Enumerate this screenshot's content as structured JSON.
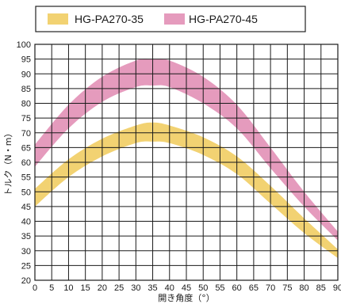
{
  "chart_data": {
    "type": "area",
    "xlabel": "開き角度（°）",
    "ylabel": "トルク（N・m）",
    "xlim": [
      0,
      90
    ],
    "ylim": [
      20,
      100
    ],
    "xticks": [
      0,
      5,
      10,
      15,
      20,
      25,
      30,
      35,
      40,
      45,
      50,
      55,
      60,
      65,
      70,
      75,
      80,
      85,
      90
    ],
    "yticks": [
      20,
      25,
      30,
      35,
      40,
      45,
      50,
      55,
      60,
      65,
      70,
      75,
      80,
      85,
      90,
      95,
      100
    ],
    "grid": true,
    "legend_position": "top",
    "x": [
      0,
      10,
      20,
      30,
      35,
      40,
      50,
      60,
      70,
      80,
      90
    ],
    "series": [
      {
        "name": "HG-PA270-35",
        "color": "#f2d272",
        "lower": [
          45,
          55,
          62,
          66.5,
          67,
          66.5,
          62.5,
          56,
          46,
          36,
          27.5
        ],
        "upper": [
          51,
          61,
          68,
          72.5,
          73.5,
          72.5,
          68.5,
          62,
          52,
          41,
          30.5
        ]
      },
      {
        "name": "HG-PA270-45",
        "color": "#e59bbd",
        "lower": [
          58.5,
          71.5,
          80.5,
          85.5,
          86,
          85.5,
          80,
          71.5,
          58,
          45,
          33.5
        ],
        "upper": [
          66,
          79.5,
          89,
          94.5,
          95,
          94.5,
          89,
          79.5,
          65,
          50,
          36.5
        ]
      }
    ]
  }
}
